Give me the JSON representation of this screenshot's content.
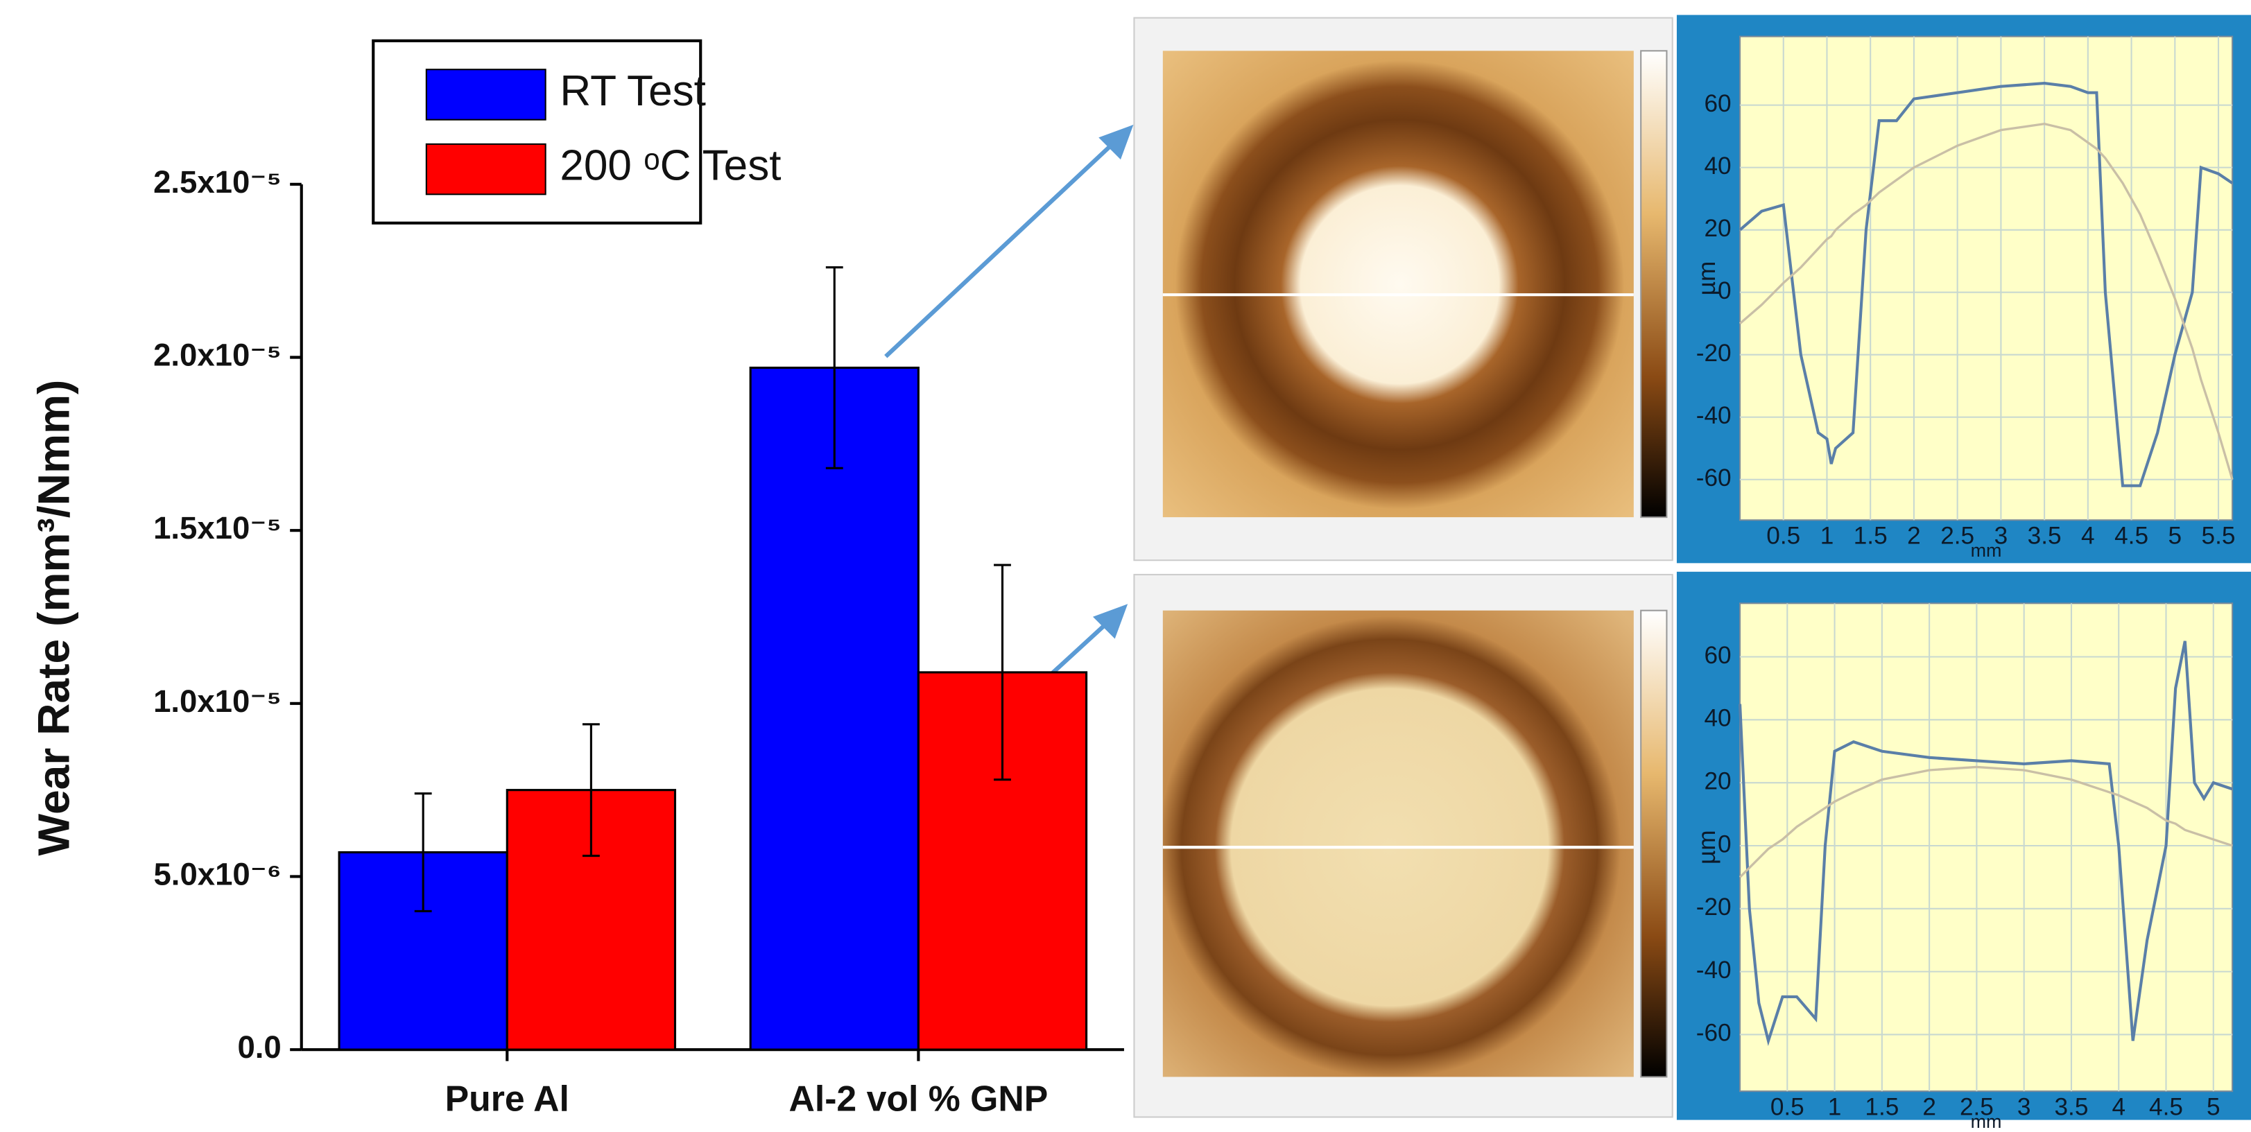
{
  "chart_data": [
    {
      "type": "bar",
      "y_label": "Wear Rate (mm³/Nmm)",
      "categories": [
        "Pure Al",
        "Al-2 vol % GNP"
      ],
      "series": [
        {
          "name": "RT Test",
          "color": "#0000ff",
          "values": [
            5.7e-06,
            1.97e-05
          ],
          "errors": [
            1.7e-06,
            2.9e-06
          ]
        },
        {
          "name": "200 ᵒC Test",
          "color": "#ff0000",
          "values": [
            7.5e-06,
            1.09e-05
          ],
          "errors": [
            1.9e-06,
            3.1e-06
          ]
        }
      ],
      "ylim": [
        0,
        2.5e-05
      ],
      "yticks": [
        {
          "value": 0,
          "label": "0.0"
        },
        {
          "value": 5e-06,
          "label": "5.0x10⁻⁶"
        },
        {
          "value": 1e-05,
          "label": "1.0x10⁻⁵"
        },
        {
          "value": 1.5e-05,
          "label": "1.5x10⁻⁵"
        },
        {
          "value": 2e-05,
          "label": "2.0x10⁻⁵"
        },
        {
          "value": 2.5e-05,
          "label": "2.5x10⁻⁵"
        }
      ],
      "legend": "upper-left"
    },
    {
      "type": "line",
      "x_label": "mm",
      "y_label": "µm",
      "x": [
        0,
        0.25,
        0.5,
        0.7,
        0.9,
        1.0,
        1.05,
        1.1,
        1.3,
        1.45,
        1.6,
        1.8,
        2.0,
        2.5,
        3.0,
        3.5,
        3.8,
        4.0,
        4.1,
        4.2,
        4.4,
        4.6,
        4.8,
        5.0,
        5.2,
        5.3,
        5.5,
        5.66
      ],
      "series": [
        {
          "color": "#5a7fa8",
          "values": [
            20,
            26,
            28,
            -20,
            -45,
            -47,
            -55,
            -50,
            -45,
            20,
            55,
            55,
            62,
            64,
            66,
            67,
            66,
            64,
            64,
            0,
            -62,
            -62,
            -45,
            -20,
            0,
            40,
            38,
            35
          ]
        },
        {
          "color": "#c9bfa6",
          "values": [
            -10,
            -4,
            3,
            8,
            14,
            17,
            18,
            20,
            25,
            28,
            32,
            36,
            40,
            47,
            52,
            54,
            52,
            48,
            46,
            43,
            35,
            25,
            12,
            -2,
            -18,
            -28,
            -45,
            -60
          ]
        }
      ],
      "xlim": [
        0,
        5.66
      ],
      "ylim": [
        -73,
        82
      ],
      "xticks": [
        0.5,
        1,
        1.5,
        2,
        2.5,
        3,
        3.5,
        4,
        4.5,
        5,
        5.5
      ],
      "yticks": [
        60,
        40,
        20,
        0,
        -20,
        -40,
        -60
      ],
      "grid": true
    },
    {
      "type": "line",
      "x_label": "mm",
      "y_label": "µm",
      "x": [
        0,
        0.1,
        0.2,
        0.3,
        0.45,
        0.6,
        0.8,
        0.9,
        1.0,
        1.2,
        1.5,
        2.0,
        2.5,
        3.0,
        3.5,
        3.9,
        4.0,
        4.15,
        4.3,
        4.5,
        4.6,
        4.7,
        4.8,
        4.9,
        5.0,
        5.2
      ],
      "series": [
        {
          "color": "#5a7fa8",
          "values": [
            45,
            -20,
            -50,
            -62,
            -48,
            -48,
            -55,
            0,
            30,
            33,
            30,
            28,
            27,
            26,
            27,
            26,
            0,
            -62,
            -30,
            0,
            50,
            65,
            20,
            15,
            20,
            18
          ]
        },
        {
          "color": "#c9bfa6",
          "values": [
            -10,
            -7,
            -4,
            -1,
            2,
            6,
            10,
            12,
            14,
            17,
            21,
            24,
            25,
            24,
            21,
            17,
            16,
            14,
            12,
            8,
            7,
            5,
            4,
            3,
            2,
            0
          ]
        }
      ],
      "xlim": [
        0,
        5.2
      ],
      "ylim": [
        -78,
        77
      ],
      "xticks": [
        0.5,
        1,
        1.5,
        2,
        2.5,
        3,
        3.5,
        4,
        4.5,
        5
      ],
      "yticks": [
        60,
        40,
        20,
        0,
        -20,
        -40,
        -60
      ],
      "grid": true
    }
  ]
}
